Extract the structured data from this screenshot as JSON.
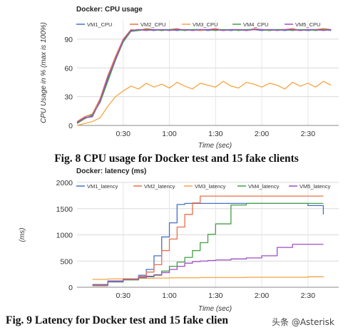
{
  "figure": {
    "caption_1": "Fig. 8 CPU usage for Docker test and 15 fake clients",
    "caption_2": "Fig. 9 Latency for Docker test and 15 fake clien",
    "watermark": "头条 @Asterisk"
  },
  "chart_data": [
    {
      "type": "line",
      "title": "Docker: CPU usage",
      "xlabel": "Time (sec)",
      "ylabel": "CPU Usage in % (max is 100%)",
      "xlim": [
        0,
        170
      ],
      "ylim": [
        0,
        110
      ],
      "x_ticks": [
        30,
        60,
        90,
        120,
        150
      ],
      "x_tick_labels": [
        "0:30",
        "1:00",
        "1:30",
        "2:00",
        "2:30"
      ],
      "y_ticks": [
        0,
        30,
        60,
        90
      ],
      "y_tick_labels": [
        "0",
        "30",
        "60",
        "90"
      ],
      "grid": true,
      "legend": "top",
      "x": [
        0,
        5,
        10,
        15,
        20,
        25,
        30,
        35,
        40,
        45,
        50,
        55,
        60,
        65,
        70,
        75,
        80,
        85,
        90,
        95,
        100,
        105,
        110,
        115,
        120,
        125,
        130,
        135,
        140,
        145,
        150,
        155,
        160,
        165
      ],
      "series": [
        {
          "name": "VM1_CPU",
          "color": "#4472c4",
          "values": [
            3,
            8,
            10,
            25,
            48,
            70,
            88,
            99,
            100,
            100,
            99,
            100,
            100,
            99,
            100,
            100,
            100,
            99,
            100,
            100,
            99,
            100,
            100,
            100,
            99,
            100,
            100,
            99,
            100,
            100,
            99,
            100,
            100,
            99
          ]
        },
        {
          "name": "VM2_CPU",
          "color": "#e8704a",
          "values": [
            4,
            9,
            12,
            28,
            52,
            72,
            90,
            100,
            99,
            101,
            100,
            99,
            100,
            101,
            99,
            100,
            99,
            100,
            101,
            99,
            100,
            100,
            99,
            101,
            100,
            99,
            100,
            100,
            101,
            99,
            100,
            100,
            101,
            100
          ]
        },
        {
          "name": "VM3_CPU",
          "color": "#f5a542",
          "values": [
            0,
            2,
            4,
            8,
            20,
            30,
            36,
            41,
            38,
            44,
            40,
            43,
            39,
            45,
            41,
            38,
            44,
            42,
            40,
            46,
            41,
            39,
            45,
            43,
            40,
            44,
            42,
            38,
            45,
            41,
            44,
            40,
            46,
            42
          ]
        },
        {
          "name": "VM4_CPU",
          "color": "#43a047",
          "values": [
            2,
            7,
            11,
            24,
            46,
            68,
            87,
            98,
            99,
            100,
            100,
            99,
            100,
            100,
            99,
            100,
            100,
            100,
            99,
            100,
            100,
            99,
            100,
            100,
            100,
            99,
            100,
            100,
            99,
            100,
            100,
            99,
            100,
            100
          ]
        },
        {
          "name": "VM5_CPU",
          "color": "#9c4fc3",
          "values": [
            3,
            8,
            9,
            26,
            50,
            69,
            89,
            99,
            100,
            99,
            100,
            100,
            99,
            100,
            100,
            99,
            100,
            100,
            100,
            99,
            100,
            100,
            99,
            100,
            100,
            100,
            99,
            100,
            100,
            99,
            100,
            100,
            99,
            100
          ]
        }
      ]
    },
    {
      "type": "line",
      "title": "Docker: latency (ms)",
      "xlabel": "Time (sec)",
      "ylabel": "(ms)",
      "xlim": [
        0,
        170
      ],
      "ylim": [
        0,
        2000
      ],
      "x_ticks": [
        30,
        60,
        90,
        120,
        150
      ],
      "x_tick_labels": [
        "0:30",
        "1:00",
        "1:30",
        "2:00",
        "2:30"
      ],
      "y_ticks": [
        0,
        500,
        1000,
        1500,
        2000
      ],
      "y_tick_labels": [
        "0",
        "500",
        "1000",
        "1500",
        "2000"
      ],
      "grid": true,
      "legend": "top",
      "x": [
        10,
        20,
        30,
        40,
        45,
        50,
        55,
        60,
        65,
        70,
        75,
        80,
        85,
        90,
        100,
        110,
        120,
        130,
        140,
        150,
        160
      ],
      "series": [
        {
          "name": "VM1_latency",
          "color": "#4472c4",
          "values": [
            50,
            120,
            160,
            230,
            340,
            600,
            960,
            1230,
            1580,
            1600,
            1600,
            1600,
            1600,
            1600,
            1600,
            1600,
            1600,
            1600,
            1600,
            1560,
            1390
          ]
        },
        {
          "name": "VM2_latency",
          "color": "#e8704a",
          "values": [
            30,
            110,
            150,
            210,
            290,
            430,
            700,
            920,
            1150,
            1390,
            1610,
            1740,
            1740,
            1740,
            1740,
            1740,
            1740,
            1740,
            1740,
            1740,
            1740
          ]
        },
        {
          "name": "VM3_latency",
          "color": "#f5a542",
          "values": [
            150,
            160,
            165,
            170,
            170,
            175,
            175,
            180,
            180,
            180,
            180,
            185,
            185,
            185,
            185,
            190,
            190,
            190,
            190,
            200,
            210
          ]
        },
        {
          "name": "VM4_latency",
          "color": "#43a047",
          "values": [
            50,
            100,
            140,
            180,
            200,
            240,
            310,
            400,
            480,
            570,
            700,
            850,
            1010,
            1210,
            1570,
            1600,
            1600,
            1600,
            1600,
            1600,
            1600
          ]
        },
        {
          "name": "VM5_latency",
          "color": "#9c4fc3",
          "values": [
            40,
            110,
            150,
            190,
            210,
            230,
            280,
            340,
            400,
            460,
            490,
            500,
            510,
            520,
            540,
            560,
            600,
            760,
            820,
            820,
            820
          ]
        }
      ]
    }
  ]
}
